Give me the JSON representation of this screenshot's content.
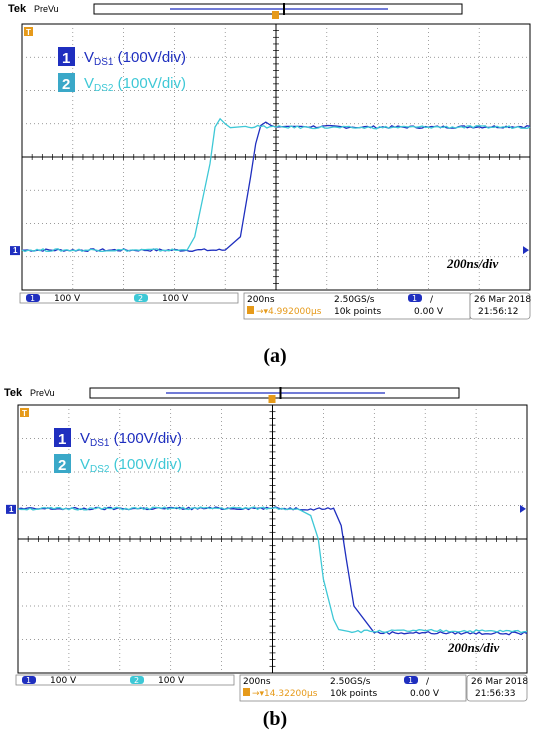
{
  "chart_data": [
    {
      "type": "line",
      "caption": "(a)",
      "header": {
        "brand": "Tek",
        "mode": "PreVu"
      },
      "timescale_label": "200ns/div",
      "x_unit": "ns",
      "y_unit": "V",
      "xlim": [
        -1000,
        1000
      ],
      "ylim": [
        -400,
        400
      ],
      "grid": true,
      "legend": [
        {
          "num": "1",
          "label": "V",
          "sub": "DS1",
          "tail": " (100V/div)"
        },
        {
          "num": "2",
          "label": "V",
          "sub": "DS2",
          "tail": " (100V/div)"
        }
      ],
      "series": [
        {
          "x": [
            -1000,
            -200,
            -140,
            -100,
            -80,
            -60,
            -40,
            -20,
            0,
            40,
            100,
            300,
            600,
            1000
          ],
          "y": [
            -280,
            -280,
            -240,
            -60,
            40,
            95,
            105,
            95,
            90,
            92,
            92,
            90,
            90,
            92
          ]
        },
        {
          "x": [
            -1000,
            -350,
            -320,
            -260,
            -240,
            -220,
            -200,
            -180,
            -120,
            0,
            300,
            600,
            1000
          ],
          "y": [
            -280,
            -280,
            -240,
            -20,
            90,
            115,
            100,
            88,
            92,
            90,
            88,
            90,
            90
          ]
        }
      ],
      "footer": {
        "ch1_num": "1",
        "ch1_scale": "100 V",
        "ch2_num": "2",
        "ch2_scale": "100 V",
        "timebase": "200ns",
        "sample_rate": "2.50GS/s",
        "trigger_pos": "4.992000µs",
        "record_length": "10k points",
        "trig_ch": "1",
        "trig_slope": "/",
        "trig_level": "0.00 V",
        "date": "26 Mar  2018",
        "time": "21:56:12"
      }
    },
    {
      "type": "line",
      "caption": "(b)",
      "header": {
        "brand": "Tek",
        "mode": "PreVu"
      },
      "timescale_label": "200ns/div",
      "x_unit": "ns",
      "y_unit": "V",
      "xlim": [
        -1000,
        1000
      ],
      "ylim": [
        -400,
        400
      ],
      "grid": true,
      "legend": [
        {
          "num": "1",
          "label": "V",
          "sub": "DS1",
          "tail": " (100V/div)"
        },
        {
          "num": "2",
          "label": "V",
          "sub": "DS2",
          "tail": " (100V/div)"
        }
      ],
      "series": [
        {
          "x": [
            -1000,
            0,
            150,
            240,
            270,
            290,
            320,
            400,
            600,
            1000
          ],
          "y": [
            90,
            92,
            90,
            92,
            40,
            -60,
            -200,
            -280,
            -280,
            -282
          ]
        },
        {
          "x": [
            -1000,
            0,
            100,
            150,
            180,
            200,
            240,
            260,
            300,
            600,
            1000
          ],
          "y": [
            90,
            92,
            90,
            70,
            0,
            -120,
            -240,
            -270,
            -276,
            -274,
            -276
          ]
        }
      ],
      "footer": {
        "ch1_num": "1",
        "ch1_scale": "100 V",
        "ch2_num": "2",
        "ch2_scale": "100 V",
        "timebase": "200ns",
        "sample_rate": "2.50GS/s",
        "trigger_pos": "14.32200µs",
        "record_length": "10k points",
        "trig_ch": "1",
        "trig_slope": "/",
        "trig_level": "0.00 V",
        "date": "26 Mar  2018",
        "time": "21:56:33"
      }
    }
  ],
  "colors": {
    "ch1": "#1f2fbf",
    "ch2": "#3ec8d6",
    "ch1_box": "#1f2fbf",
    "ch2_box": "#3aa8c8",
    "trigger": "#e69a1a",
    "grid": "#7a7a7a"
  }
}
